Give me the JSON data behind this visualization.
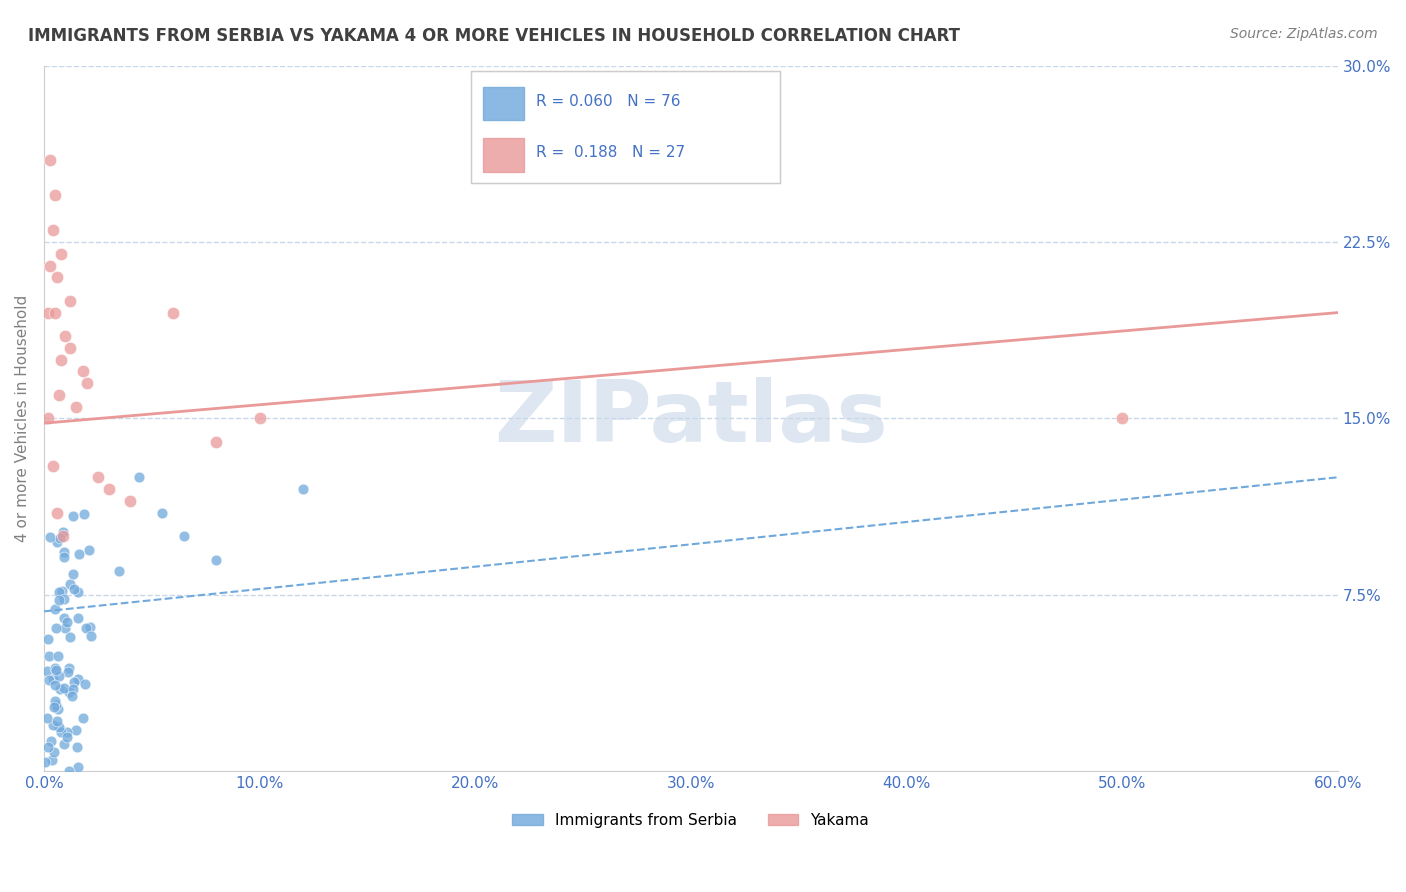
{
  "title": "IMMIGRANTS FROM SERBIA VS YAKAMA 4 OR MORE VEHICLES IN HOUSEHOLD CORRELATION CHART",
  "source_text": "Source: ZipAtlas.com",
  "ylabel": "4 or more Vehicles in Household",
  "xlim": [
    0.0,
    0.6
  ],
  "ylim": [
    0.0,
    0.3
  ],
  "xticks": [
    0.0,
    0.1,
    0.2,
    0.3,
    0.4,
    0.5,
    0.6
  ],
  "xtick_labels": [
    "0.0%",
    "10.0%",
    "20.0%",
    "30.0%",
    "40.0%",
    "50.0%",
    "60.0%"
  ],
  "yticks": [
    0.0,
    0.075,
    0.15,
    0.225,
    0.3
  ],
  "ytick_labels": [
    "",
    "7.5%",
    "15.0%",
    "22.5%",
    "30.0%"
  ],
  "blue_R": 0.06,
  "blue_N": 76,
  "pink_R": 0.188,
  "pink_N": 27,
  "blue_color": "#6fa8dc",
  "pink_color": "#ea9999",
  "blue_label": "Immigrants from Serbia",
  "pink_label": "Yakama",
  "axis_color": "#4472c4",
  "title_color": "#404040",
  "watermark_color": "#c8d8e8",
  "legend_R_color": "#4472c4",
  "grid_color": "#c8d8e8",
  "blue_trend_y_start": 0.068,
  "blue_trend_y_end": 0.125,
  "pink_trend_y_start": 0.148,
  "pink_trend_y_end": 0.195
}
